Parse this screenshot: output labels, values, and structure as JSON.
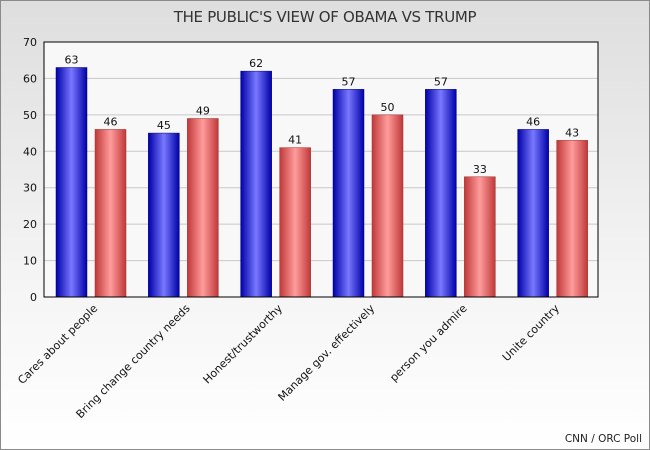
{
  "chart_data": {
    "type": "bar",
    "title": "THE PUBLIC'S VIEW OF OBAMA VS TRUMP",
    "xlabel": "",
    "ylabel": "",
    "ylim": [
      0,
      70
    ],
    "yticks": [
      0,
      10,
      20,
      30,
      40,
      50,
      60,
      70
    ],
    "grid": true,
    "legend": "none",
    "categories": [
      "Cares about people",
      "Bring change country needs",
      "Honest/trustworthy",
      "Manage gov. effectively",
      "person you admire",
      "Unite country"
    ],
    "series": [
      {
        "values": [
          63,
          45,
          62,
          57,
          57,
          46
        ],
        "color": "#0000e0"
      },
      {
        "values": [
          46,
          49,
          41,
          50,
          33,
          43
        ],
        "color": "#e05050"
      }
    ],
    "source": "CNN / ORC Poll"
  }
}
